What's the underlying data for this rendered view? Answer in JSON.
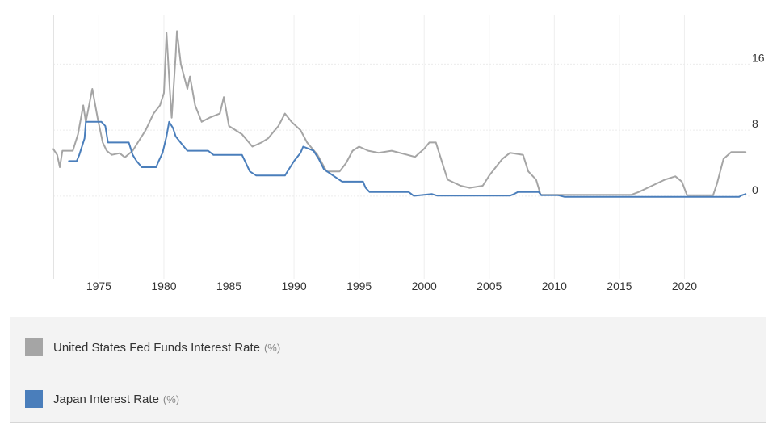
{
  "chart_data": {
    "type": "line",
    "xlim": [
      1971.5,
      2025.0
    ],
    "ylim": [
      -10,
      22
    ],
    "x_ticks": [
      "1975",
      "1980",
      "1985",
      "1990",
      "1995",
      "2000",
      "2005",
      "2010",
      "2015",
      "2020"
    ],
    "y_ticks": [
      "16",
      "8",
      "0"
    ],
    "grid": true,
    "legend_placement": "bottom",
    "series": [
      {
        "name": "United States Fed Funds Interest Rate",
        "unit": "(%)",
        "color": "#a5a5a5",
        "points": [
          [
            1971.5,
            5.7
          ],
          [
            1971.8,
            5.0
          ],
          [
            1972.0,
            3.5
          ],
          [
            1972.2,
            5.5
          ],
          [
            1973.0,
            5.5
          ],
          [
            1973.4,
            7.5
          ],
          [
            1973.8,
            11.0
          ],
          [
            1974.0,
            9.0
          ],
          [
            1974.5,
            13.0
          ],
          [
            1974.9,
            9.5
          ],
          [
            1975.3,
            6.5
          ],
          [
            1975.6,
            5.5
          ],
          [
            1976.0,
            5.0
          ],
          [
            1976.6,
            5.2
          ],
          [
            1977.0,
            4.7
          ],
          [
            1977.6,
            5.5
          ],
          [
            1978.0,
            6.5
          ],
          [
            1978.6,
            8.0
          ],
          [
            1979.2,
            10.0
          ],
          [
            1979.7,
            11.0
          ],
          [
            1980.0,
            12.5
          ],
          [
            1980.2,
            19.8
          ],
          [
            1980.45,
            13.0
          ],
          [
            1980.6,
            9.5
          ],
          [
            1980.9,
            17.0
          ],
          [
            1981.0,
            20.0
          ],
          [
            1981.3,
            16.0
          ],
          [
            1981.8,
            13.0
          ],
          [
            1982.0,
            14.5
          ],
          [
            1982.4,
            11.0
          ],
          [
            1982.9,
            9.0
          ],
          [
            1983.5,
            9.5
          ],
          [
            1984.3,
            10.0
          ],
          [
            1984.6,
            12.0
          ],
          [
            1985.0,
            8.5
          ],
          [
            1985.5,
            8.0
          ],
          [
            1986.0,
            7.5
          ],
          [
            1986.8,
            6.0
          ],
          [
            1987.5,
            6.5
          ],
          [
            1988.0,
            7.0
          ],
          [
            1988.8,
            8.5
          ],
          [
            1989.3,
            10.0
          ],
          [
            1989.8,
            9.0
          ],
          [
            1990.5,
            8.0
          ],
          [
            1991.0,
            6.5
          ],
          [
            1991.8,
            5.0
          ],
          [
            1992.5,
            3.0
          ],
          [
            1993.5,
            3.0
          ],
          [
            1994.0,
            4.0
          ],
          [
            1994.5,
            5.5
          ],
          [
            1995.0,
            6.0
          ],
          [
            1995.7,
            5.5
          ],
          [
            1996.5,
            5.25
          ],
          [
            1997.5,
            5.5
          ],
          [
            1998.7,
            5.0
          ],
          [
            1999.3,
            4.75
          ],
          [
            2000.0,
            5.75
          ],
          [
            2000.4,
            6.5
          ],
          [
            2000.9,
            6.5
          ],
          [
            2001.3,
            4.5
          ],
          [
            2001.8,
            2.0
          ],
          [
            2002.8,
            1.25
          ],
          [
            2003.5,
            1.0
          ],
          [
            2004.5,
            1.25
          ],
          [
            2005.0,
            2.5
          ],
          [
            2006.0,
            4.5
          ],
          [
            2006.6,
            5.25
          ],
          [
            2007.6,
            5.0
          ],
          [
            2008.0,
            3.0
          ],
          [
            2008.6,
            2.0
          ],
          [
            2008.95,
            0.15
          ],
          [
            2015.9,
            0.15
          ],
          [
            2016.5,
            0.5
          ],
          [
            2017.5,
            1.25
          ],
          [
            2018.5,
            2.0
          ],
          [
            2019.3,
            2.4
          ],
          [
            2019.8,
            1.75
          ],
          [
            2020.2,
            0.1
          ],
          [
            2022.2,
            0.1
          ],
          [
            2022.5,
            1.5
          ],
          [
            2023.0,
            4.5
          ],
          [
            2023.6,
            5.33
          ],
          [
            2024.7,
            5.33
          ]
        ]
      },
      {
        "name": "Japan Interest Rate",
        "unit": "(%)",
        "color": "#4a7ebb",
        "points": [
          [
            1972.7,
            4.25
          ],
          [
            1973.3,
            4.25
          ],
          [
            1973.5,
            5.0
          ],
          [
            1973.9,
            7.0
          ],
          [
            1974.0,
            9.0
          ],
          [
            1975.2,
            9.0
          ],
          [
            1975.5,
            8.5
          ],
          [
            1975.7,
            6.5
          ],
          [
            1977.3,
            6.5
          ],
          [
            1977.6,
            5.0
          ],
          [
            1977.9,
            4.25
          ],
          [
            1978.3,
            3.5
          ],
          [
            1979.4,
            3.5
          ],
          [
            1979.6,
            4.25
          ],
          [
            1979.9,
            5.25
          ],
          [
            1980.2,
            7.25
          ],
          [
            1980.4,
            9.0
          ],
          [
            1980.7,
            8.25
          ],
          [
            1980.9,
            7.25
          ],
          [
            1981.4,
            6.25
          ],
          [
            1981.8,
            5.5
          ],
          [
            1983.4,
            5.5
          ],
          [
            1983.8,
            5.0
          ],
          [
            1986.0,
            5.0
          ],
          [
            1986.3,
            4.0
          ],
          [
            1986.6,
            3.0
          ],
          [
            1987.1,
            2.5
          ],
          [
            1989.3,
            2.5
          ],
          [
            1989.6,
            3.25
          ],
          [
            1990.0,
            4.25
          ],
          [
            1990.5,
            5.25
          ],
          [
            1990.7,
            6.0
          ],
          [
            1991.5,
            5.5
          ],
          [
            1991.9,
            4.5
          ],
          [
            1992.3,
            3.25
          ],
          [
            1993.0,
            2.5
          ],
          [
            1993.7,
            1.75
          ],
          [
            1995.3,
            1.75
          ],
          [
            1995.5,
            1.0
          ],
          [
            1995.8,
            0.5
          ],
          [
            1998.8,
            0.5
          ],
          [
            1999.2,
            0.03
          ],
          [
            2000.6,
            0.25
          ],
          [
            2001.0,
            0.05
          ],
          [
            2006.6,
            0.05
          ],
          [
            2006.9,
            0.25
          ],
          [
            2007.2,
            0.5
          ],
          [
            2008.8,
            0.5
          ],
          [
            2009.0,
            0.1
          ],
          [
            2010.3,
            0.1
          ],
          [
            2010.8,
            -0.1
          ],
          [
            2015.9,
            -0.1
          ],
          [
            2016.2,
            -0.1
          ],
          [
            2024.2,
            -0.1
          ],
          [
            2024.4,
            0.1
          ],
          [
            2024.7,
            0.25
          ]
        ]
      }
    ]
  }
}
